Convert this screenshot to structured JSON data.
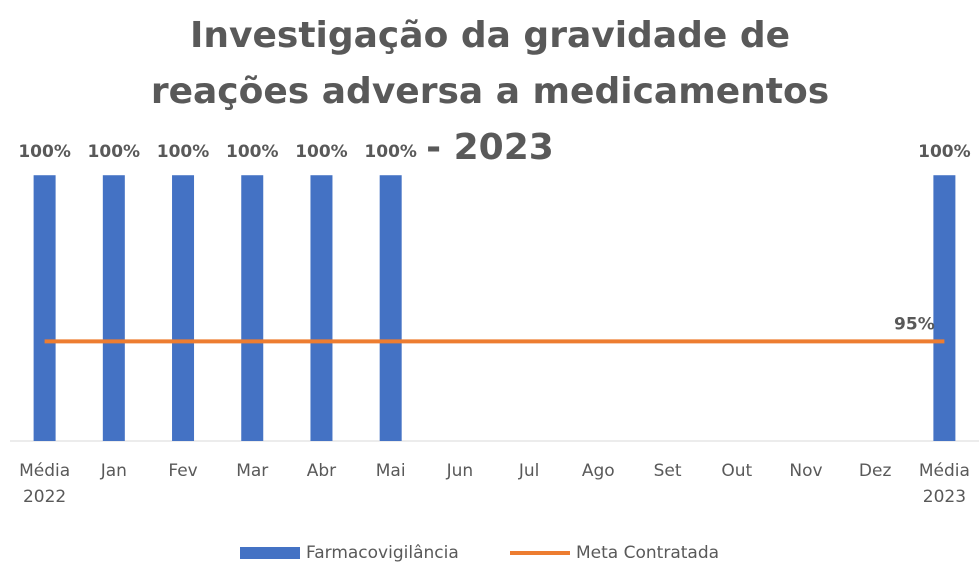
{
  "chart_data": {
    "type": "bar",
    "title": "Investigação da gravidade de reações adversa a medicamentos - 2023",
    "categories": [
      "Média 2022",
      "Jan",
      "Fev",
      "Mar",
      "Abr",
      "Mai",
      "Jun",
      "Jul",
      "Ago",
      "Set",
      "Out",
      "Nov",
      "Dez",
      "Média 2023"
    ],
    "series": [
      {
        "name": "Farmacovigilância",
        "type": "bar",
        "color": "#4472c4",
        "values": [
          100,
          100,
          100,
          100,
          100,
          100,
          null,
          null,
          null,
          null,
          null,
          null,
          null,
          100
        ],
        "value_labels": [
          "100%",
          "100%",
          "100%",
          "100%",
          "100%",
          "100%",
          null,
          null,
          null,
          null,
          null,
          null,
          null,
          "100%"
        ]
      },
      {
        "name": "Meta Contratada",
        "type": "line",
        "color": "#ed7d31",
        "values": [
          95,
          95,
          95,
          95,
          95,
          95,
          95,
          95,
          95,
          95,
          95,
          95,
          95,
          95
        ],
        "value_labels": [
          null,
          null,
          null,
          null,
          null,
          null,
          null,
          null,
          null,
          null,
          null,
          null,
          null,
          "95%"
        ]
      }
    ],
    "ylim": [
      92,
      101
    ],
    "legend": "bottom"
  }
}
